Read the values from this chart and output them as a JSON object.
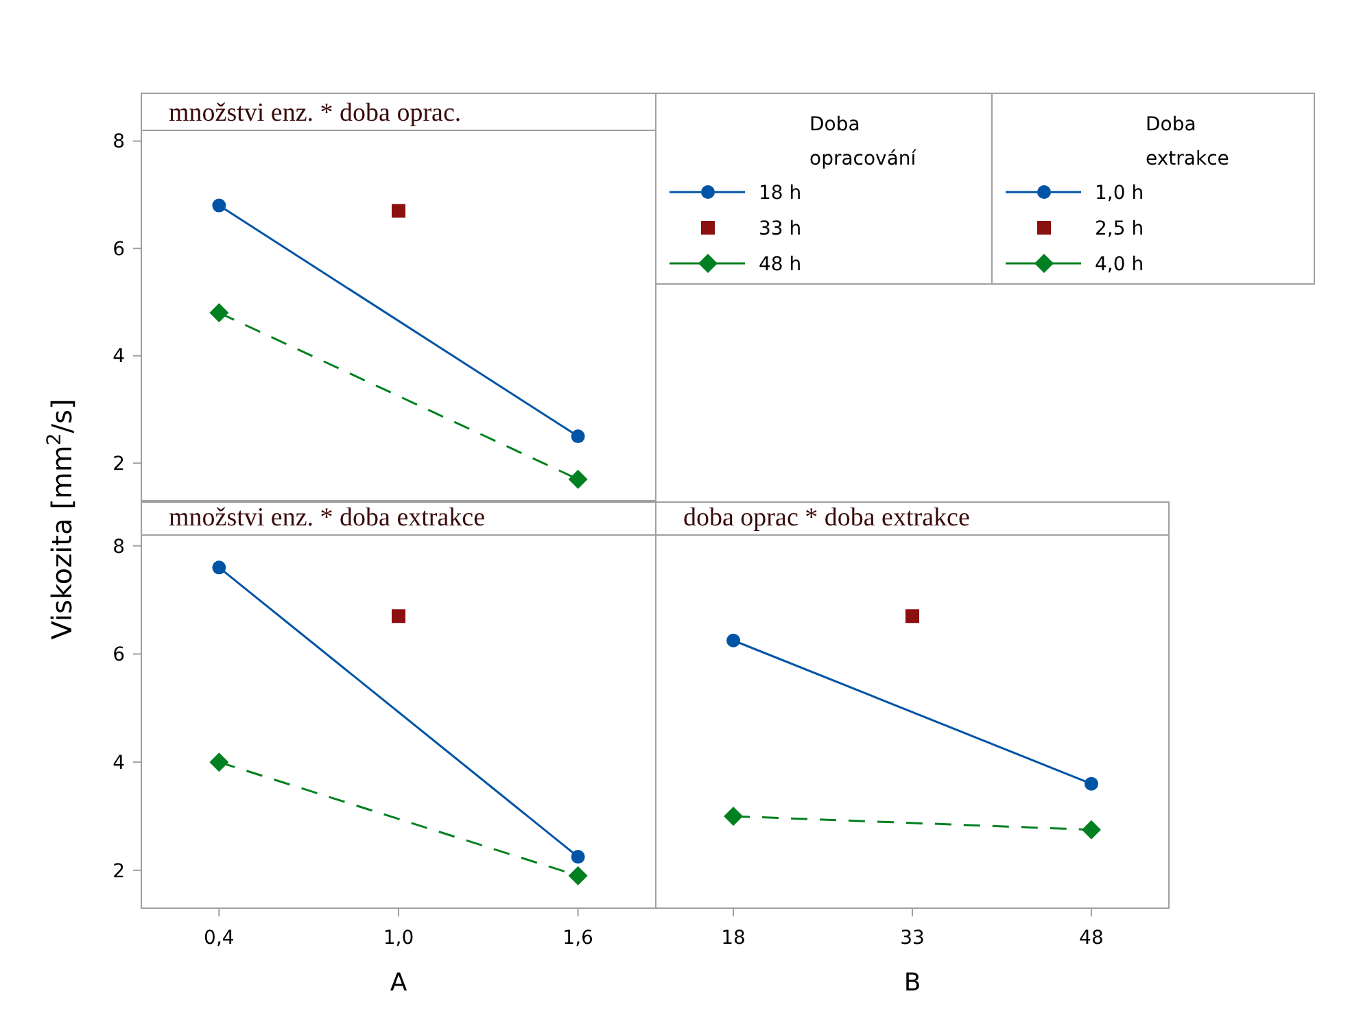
{
  "chart_data": [
    {
      "type": "line",
      "title": "množstvi enz. * doba oprac.",
      "ylabel": "Viskozita [mm$^{2}$/s]",
      "legend_title": "Doba opracování",
      "legend": "right",
      "tick_labels": "y",
      "grid": false,
      "xlim": [
        0.14,
        1.86
      ],
      "ylim": [
        1.3,
        8.2
      ],
      "yticks": [
        2,
        4,
        6,
        8
      ],
      "series": [
        {
          "name": "18 h",
          "color": "#0054a6",
          "marker": "circle",
          "line_style": "solid",
          "x": [
            0.4,
            1.6
          ],
          "values": [
            6.8,
            2.5
          ]
        },
        {
          "name": "33 h",
          "type": "scatter",
          "color": "#8b1010",
          "marker": "square",
          "x": [
            1.0
          ],
          "values": [
            6.7
          ]
        },
        {
          "name": "48 h",
          "color": "#008020",
          "marker": "diamond",
          "line_style": "dashed",
          "x": [
            0.4,
            1.6
          ],
          "values": [
            4.8,
            1.7
          ]
        }
      ]
    },
    {
      "type": "line",
      "title": "množstvi enz. * doba extrakce",
      "xlabel": "A",
      "legend_title": "Doba extrakce",
      "legend": "right",
      "grid": false,
      "xlim": [
        0.14,
        1.86
      ],
      "xticks": [
        {
          "value": 0.4,
          "label": "0,4"
        },
        {
          "value": 1.0,
          "label": "1,0"
        },
        {
          "value": 1.6,
          "label": "1,6"
        }
      ],
      "ylim": [
        1.3,
        8.2
      ],
      "yticks": [
        2,
        4,
        6,
        8
      ],
      "series": [
        {
          "name": "1,0 h",
          "color": "#0054a6",
          "marker": "circle",
          "line_style": "solid",
          "x": [
            0.4,
            1.6
          ],
          "values": [
            7.6,
            2.25
          ]
        },
        {
          "name": "2,5 h",
          "type": "scatter",
          "color": "#8b1010",
          "marker": "square",
          "x": [
            1.0
          ],
          "values": [
            6.7
          ]
        },
        {
          "name": "4,0 h",
          "color": "#008020",
          "marker": "diamond",
          "line_style": "dashed",
          "x": [
            0.4,
            1.6
          ],
          "values": [
            4.0,
            1.9
          ]
        }
      ]
    },
    {
      "type": "line",
      "title": "doba oprac * doba extrakce",
      "xlabel": "B",
      "tick_labels": "x",
      "grid": false,
      "xlim": [
        11.5,
        54.5
      ],
      "xticks": [
        18,
        33,
        48
      ],
      "ylim": [
        1.3,
        8.2
      ],
      "yticks": [
        2,
        4,
        6,
        8
      ],
      "series": [
        {
          "color": "#0054a6",
          "marker": "circle",
          "line_style": "solid",
          "x": [
            18,
            48
          ],
          "values": [
            6.25,
            3.6
          ]
        },
        {
          "type": "scatter",
          "color": "#8b1010",
          "marker": "square",
          "x": [
            33
          ],
          "values": [
            6.7
          ]
        },
        {
          "color": "#008020",
          "marker": "diamond",
          "line_style": "dashed",
          "x": [
            18,
            48
          ],
          "values": [
            3.0,
            2.75
          ]
        }
      ]
    }
  ]
}
